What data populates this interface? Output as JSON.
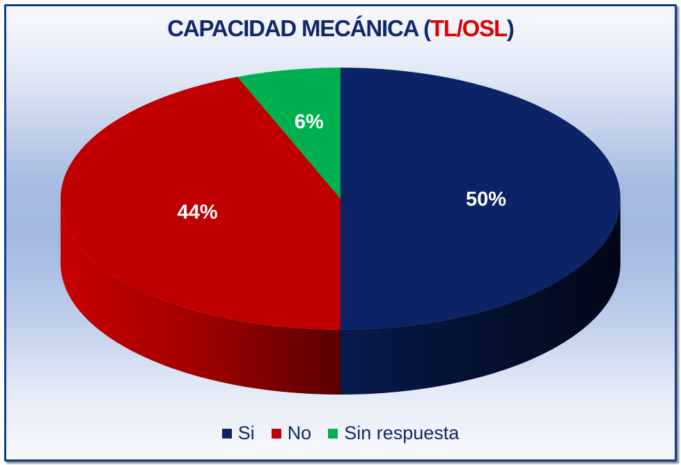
{
  "chart_data": {
    "type": "pie",
    "title_main": "CAPACIDAD MECÁNICA (",
    "title_accent": "TL/OSL",
    "title_end": ")",
    "categories": [
      "Si",
      "No",
      "Sin respuesta"
    ],
    "values": [
      50,
      44,
      6
    ],
    "data_labels": [
      "50%",
      "44%",
      "6%"
    ],
    "colors": [
      "#0c2366",
      "#c00000",
      "#00b050"
    ],
    "legend_position": "bottom"
  }
}
